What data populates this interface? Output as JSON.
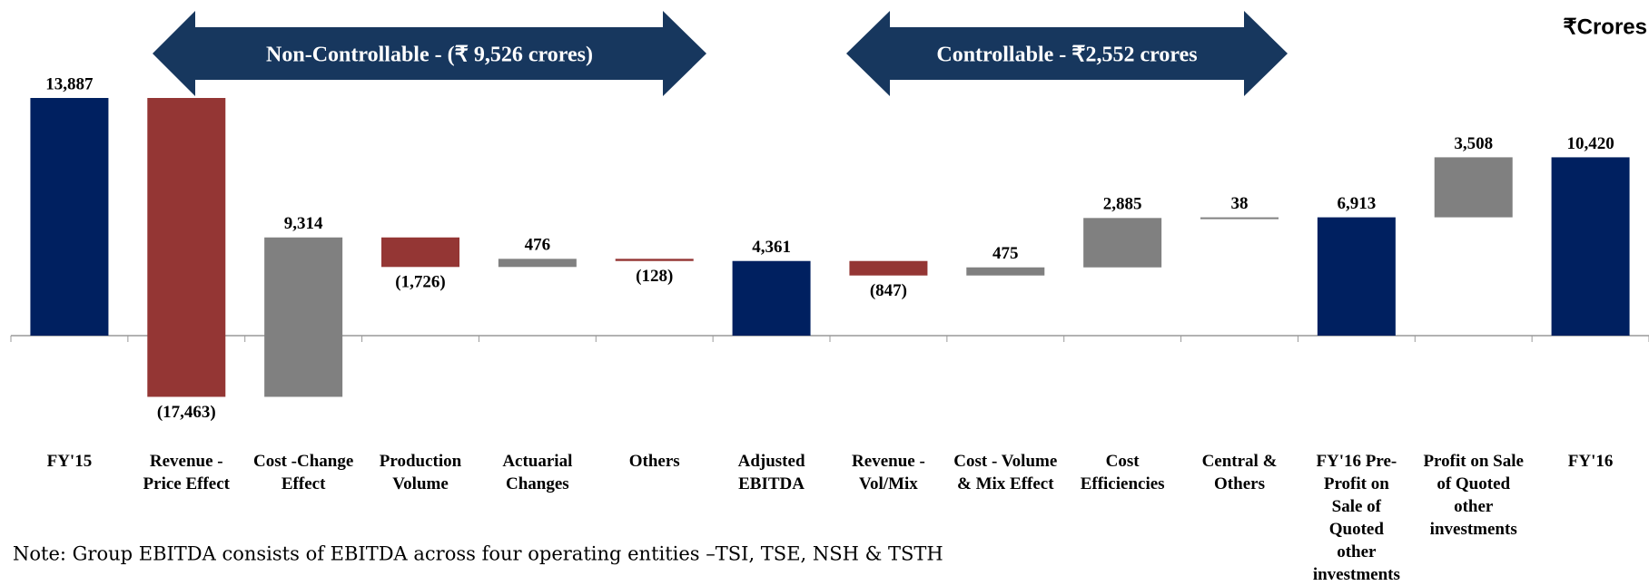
{
  "chart_data": {
    "type": "waterfall",
    "unit_label": "₹Crores",
    "annotations": [
      "Non-Controllable - (₹ 9,526 crores)",
      "Controllable - ₹2,552 crores"
    ],
    "note": "Note: Group EBITDA consists of EBITDA across four operating entities –TSI, TSE, NSH & TSTH",
    "categories": [
      "FY'15",
      "Revenue - Price Effect",
      "Cost -Change Effect",
      "Production Volume",
      "Actuarial Changes",
      "Others",
      "Adjusted EBITDA",
      "Revenue - Vol/Mix",
      "Cost - Volume & Mix Effect",
      "Cost Efficiencies",
      "Central & Others",
      "FY'16 Pre-Profit on Sale of Quoted other investments",
      "Profit on Sale of Quoted other investments",
      "FY'16"
    ],
    "values": [
      13887,
      -17463,
      9314,
      -1726,
      476,
      -128,
      4361,
      -847,
      475,
      2885,
      38,
      6913,
      3508,
      10420
    ],
    "value_labels": [
      "13,887",
      "(17,463)",
      "9,314",
      "(1,726)",
      "476",
      "(128)",
      "4,361",
      "(847)",
      "475",
      "2,885",
      "38",
      "6,913",
      "3,508",
      "10,420"
    ],
    "is_total": [
      true,
      false,
      false,
      false,
      false,
      false,
      true,
      false,
      false,
      false,
      false,
      true,
      false,
      true
    ],
    "colors": {
      "total": "#002060",
      "increase": "#808080",
      "decrease": "#943634"
    }
  }
}
